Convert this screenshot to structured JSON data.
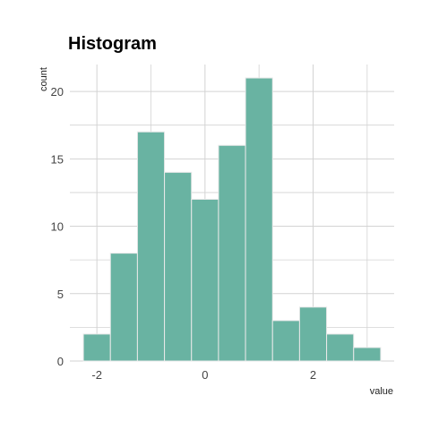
{
  "chart_data": {
    "type": "bar",
    "title": "Histogram",
    "xlabel": "value",
    "ylabel": "count",
    "bin_width": 0.5,
    "bins": [
      {
        "start": -2.25,
        "end": -1.75,
        "count": 2
      },
      {
        "start": -1.75,
        "end": -1.25,
        "count": 8
      },
      {
        "start": -1.25,
        "end": -0.75,
        "count": 17
      },
      {
        "start": -0.75,
        "end": -0.25,
        "count": 14
      },
      {
        "start": -0.25,
        "end": 0.25,
        "count": 12
      },
      {
        "start": 0.25,
        "end": 0.75,
        "count": 16
      },
      {
        "start": 0.75,
        "end": 1.25,
        "count": 21
      },
      {
        "start": 1.25,
        "end": 1.75,
        "count": 3
      },
      {
        "start": 1.75,
        "end": 2.25,
        "count": 4
      },
      {
        "start": 2.25,
        "end": 2.75,
        "count": 2
      },
      {
        "start": 2.75,
        "end": 3.25,
        "count": 1
      }
    ],
    "xlim": [
      -2.5,
      3.5
    ],
    "ylim": [
      0,
      22
    ],
    "x_ticks": [
      -2,
      0,
      2
    ],
    "y_ticks": [
      0,
      5,
      10,
      15,
      20
    ],
    "grid": true,
    "legend": "none",
    "bar_color": "#69b3a2",
    "bar_edge_color": "#e9e9e9",
    "grid_color": "#d3d3d3"
  }
}
